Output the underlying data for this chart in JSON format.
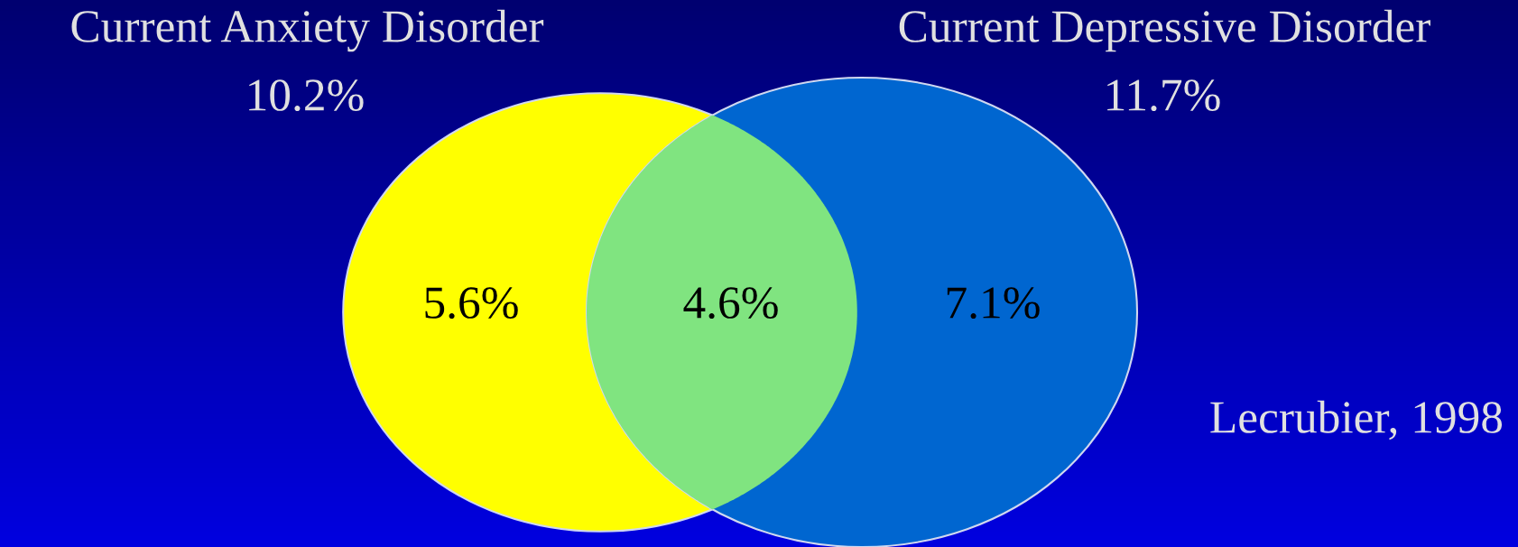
{
  "chart_data": {
    "type": "other",
    "categories": [
      "Current Anxiety Disorder",
      "Current Depressive Disorder"
    ],
    "values": [
      10.2,
      11.7
    ],
    "value_labels": [
      "10.2%",
      "11.7%"
    ],
    "colors": [
      "#ffff00",
      "#0066d0"
    ],
    "annotations": [
      "5.6%",
      "4.6%",
      "7.1%",
      "Lecrubier, 1998"
    ]
  }
}
